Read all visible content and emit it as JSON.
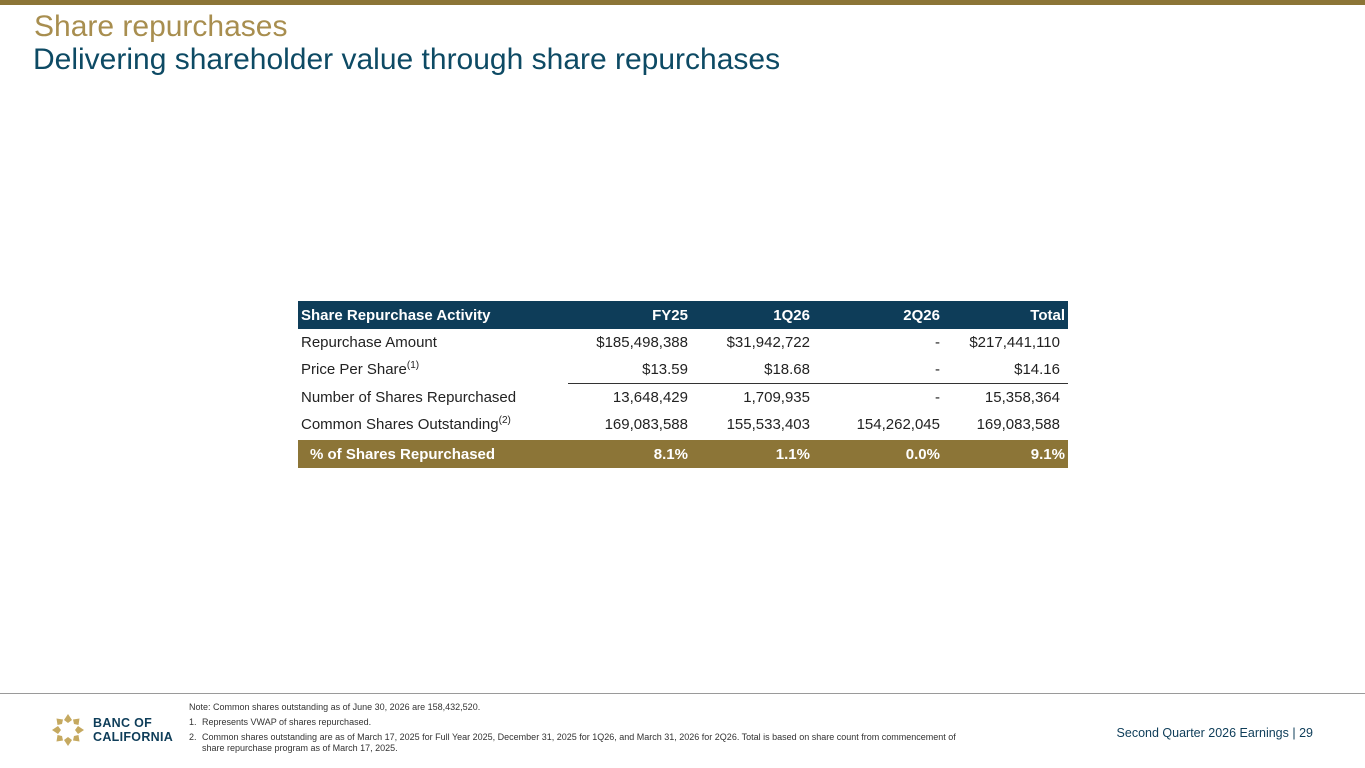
{
  "slide": {
    "title": "Share repurchases",
    "subtitle": "Delivering shareholder value through share repurchases"
  },
  "table": {
    "headers": [
      "Share Repurchase Activity",
      "FY25",
      "1Q26",
      "2Q26",
      "Total"
    ],
    "rows": [
      {
        "label": "Repurchase Amount",
        "sup": "",
        "values": [
          "$185,498,388",
          "$31,942,722",
          "-",
          "$217,441,110"
        ]
      },
      {
        "label": "Price Per Share",
        "sup": "(1)",
        "values": [
          "$13.59",
          "$18.68",
          "-",
          "$14.16"
        ]
      },
      {
        "label": "Number of Shares Repurchased",
        "sup": "",
        "values": [
          "13,648,429",
          "1,709,935",
          "-",
          "15,358,364"
        ]
      },
      {
        "label": "Common Shares Outstanding",
        "sup": "(2)",
        "values": [
          "169,083,588",
          "155,533,403",
          "154,262,045",
          "169,083,588"
        ]
      }
    ],
    "total": {
      "label": "% of Shares Repurchased",
      "values": [
        "8.1%",
        "1.1%",
        "0.0%",
        "9.1%"
      ]
    }
  },
  "footer": {
    "note": "Note: Common shares outstanding as of June 30, 2026 are 158,432,520.",
    "footnotes": [
      {
        "num": "1.",
        "text": "Represents VWAP of shares repurchased."
      },
      {
        "num": "2.",
        "text": "Common shares outstanding are as of March 17, 2025 for Full Year 2025, December 31, 2025 for 1Q26, and March 31, 2026 for 2Q26. Total is based on share count from commencement of share repurchase program as of March 17, 2025."
      }
    ],
    "logo_line1": "BANC OF",
    "logo_line2": "CALIFORNIA",
    "label": "Second Quarter 2026 Earnings |",
    "page_number": "29"
  },
  "colors": {
    "navy": "#0e3d59",
    "gold": "#8c7537",
    "title_gold": "#a88e4f",
    "subtitle_blue": "#0d4a64"
  }
}
